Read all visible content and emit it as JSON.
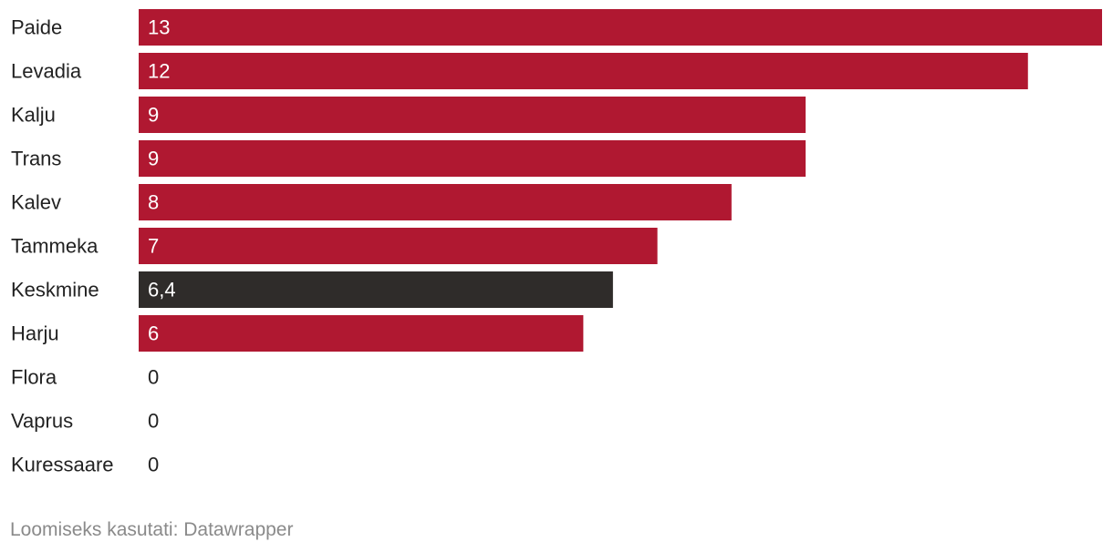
{
  "chart_data": {
    "type": "bar",
    "orientation": "horizontal",
    "categories": [
      "Paide",
      "Levadia",
      "Kalju",
      "Trans",
      "Kalev",
      "Tammeka",
      "Keskmine",
      "Harju",
      "Flora",
      "Vaprus",
      "Kuressaare"
    ],
    "values": [
      13,
      12,
      9,
      9,
      8,
      7,
      6.4,
      6,
      0,
      0,
      0
    ],
    "value_labels": [
      "13",
      "12",
      "9",
      "9",
      "8",
      "7",
      "6,4",
      "6",
      "0",
      "0",
      "0"
    ],
    "xlim": [
      0,
      13
    ],
    "highlight_category": "Keskmine",
    "colors": {
      "bar": "#b01831",
      "highlight": "#2f2c2a",
      "label_inside": "#ffffff",
      "label_outside": "#222222",
      "category_text": "#222222"
    },
    "grid": false,
    "legend": "none"
  },
  "footer": {
    "credit": "Loomiseks kasutati: Datawrapper"
  }
}
